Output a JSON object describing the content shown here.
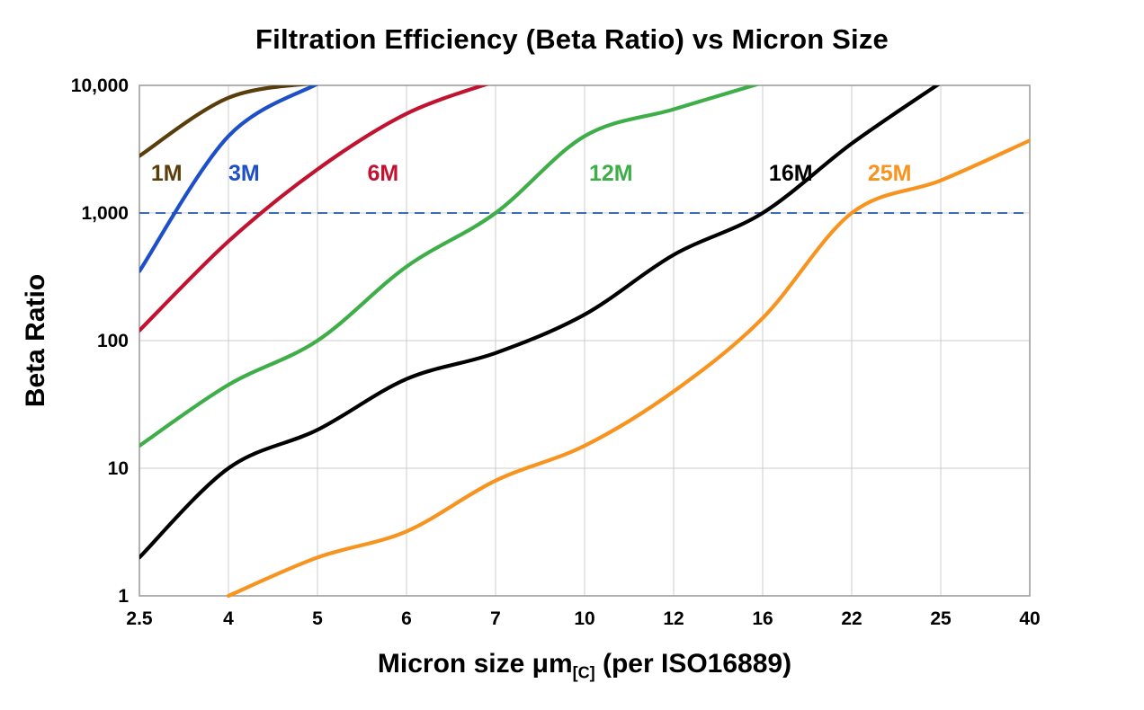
{
  "chart_data": {
    "type": "line",
    "title": "Filtration Efficiency (Beta Ratio) vs Micron Size",
    "xlabel": {
      "main": "Micron size μm",
      "sub": "[C]",
      "tail": " (per ISO16889)"
    },
    "ylabel": "Beta Ratio",
    "x_categories": [
      "2.5",
      "4",
      "5",
      "6",
      "7",
      "10",
      "12",
      "16",
      "22",
      "25",
      "40"
    ],
    "y_ticks": [
      "1",
      "10",
      "100",
      "1,000",
      "10,000"
    ],
    "y_scale": "log",
    "ylim": [
      1,
      10000
    ],
    "grid": true,
    "grid_color": "#cccccc",
    "border_color": "#999999",
    "reference_line": {
      "y": 1000,
      "style": "dashed",
      "color": "#3c6db0"
    },
    "series": [
      {
        "name": "1M",
        "color": "#593d0b",
        "values": [
          2800,
          8000,
          10500,
          null,
          null,
          null,
          null,
          null,
          null,
          null,
          null
        ],
        "label_pos": {
          "xi": 0.13,
          "y": 1800
        }
      },
      {
        "name": "3M",
        "color": "#1d50c8",
        "values": [
          350,
          4000,
          10300,
          null,
          null,
          null,
          null,
          null,
          null,
          null,
          null
        ],
        "label_pos": {
          "xi": 1.0,
          "y": 1800
        }
      },
      {
        "name": "6M",
        "color": "#c1122f",
        "values": [
          120,
          600,
          2200,
          6000,
          10800,
          null,
          null,
          null,
          null,
          null,
          null
        ],
        "label_pos": {
          "xi": 2.56,
          "y": 1800
        }
      },
      {
        "name": "12M",
        "color": "#3fae49",
        "values": [
          15,
          45,
          100,
          380,
          1000,
          4000,
          6500,
          10500,
          null,
          null,
          null
        ],
        "label_pos": {
          "xi": 5.05,
          "y": 1800
        }
      },
      {
        "name": "16M",
        "color": "#000000",
        "values": [
          2,
          10,
          20,
          50,
          80,
          160,
          470,
          1000,
          3500,
          10500,
          null
        ],
        "label_pos": {
          "xi": 7.07,
          "y": 1800
        }
      },
      {
        "name": "25M",
        "color": "#f79420",
        "values": [
          null,
          1,
          2,
          3.2,
          8,
          15,
          40,
          150,
          1000,
          1800,
          3700
        ],
        "label_pos": {
          "xi": 8.18,
          "y": 1800
        }
      }
    ]
  }
}
